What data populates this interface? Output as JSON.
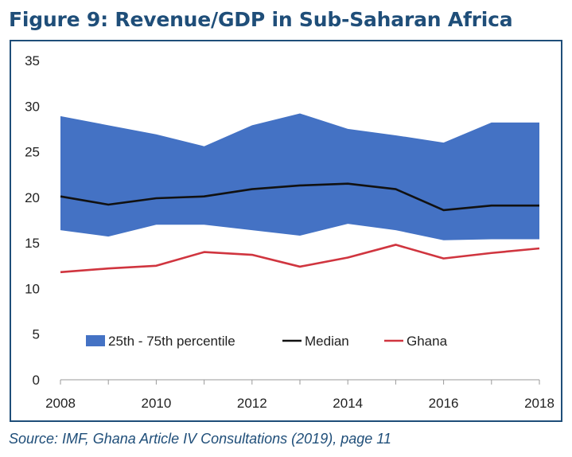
{
  "figure_title": "Figure 9: Revenue/GDP in Sub-Saharan Africa",
  "source": "Source: IMF, Ghana Article IV Consultations (2019), page 11",
  "colors": {
    "band": "#4472c4",
    "median": "#111111",
    "ghana": "#d0353f",
    "frame": "#1f4e79"
  },
  "chart_data": {
    "type": "area",
    "title": "",
    "xlabel": "",
    "ylabel": "",
    "x": [
      2008,
      2009,
      2010,
      2011,
      2012,
      2013,
      2014,
      2015,
      2016,
      2017,
      2018
    ],
    "xlim": [
      2008,
      2018
    ],
    "ylim": [
      0,
      35
    ],
    "x_ticks": [
      "2008",
      "2010",
      "2012",
      "2014",
      "2016",
      "2018"
    ],
    "y_ticks": [
      "0",
      "5",
      "10",
      "15",
      "20",
      "25",
      "30",
      "35"
    ],
    "series": [
      {
        "name": "25th - 75th percentile",
        "kind": "band",
        "lower": [
          16.4,
          15.7,
          17.0,
          17.0,
          16.4,
          15.8,
          17.1,
          16.4,
          15.3,
          15.4,
          15.4
        ],
        "upper": [
          28.9,
          27.9,
          26.9,
          25.6,
          27.9,
          29.2,
          27.5,
          26.8,
          26.0,
          28.2,
          28.2
        ]
      },
      {
        "name": "Median",
        "kind": "line",
        "values": [
          20.1,
          19.2,
          19.9,
          20.1,
          20.9,
          21.3,
          21.5,
          20.9,
          18.6,
          19.1,
          19.1
        ]
      },
      {
        "name": "Ghana",
        "kind": "line",
        "values": [
          11.8,
          12.2,
          12.5,
          14.0,
          13.7,
          12.4,
          13.4,
          14.8,
          13.3,
          13.9,
          14.4
        ]
      }
    ],
    "legend": [
      {
        "label": "25th - 75th percentile",
        "kind": "band"
      },
      {
        "label": "Median",
        "kind": "line"
      },
      {
        "label": "Ghana",
        "kind": "line"
      }
    ],
    "legend_position": "bottom-center",
    "grid": false
  }
}
